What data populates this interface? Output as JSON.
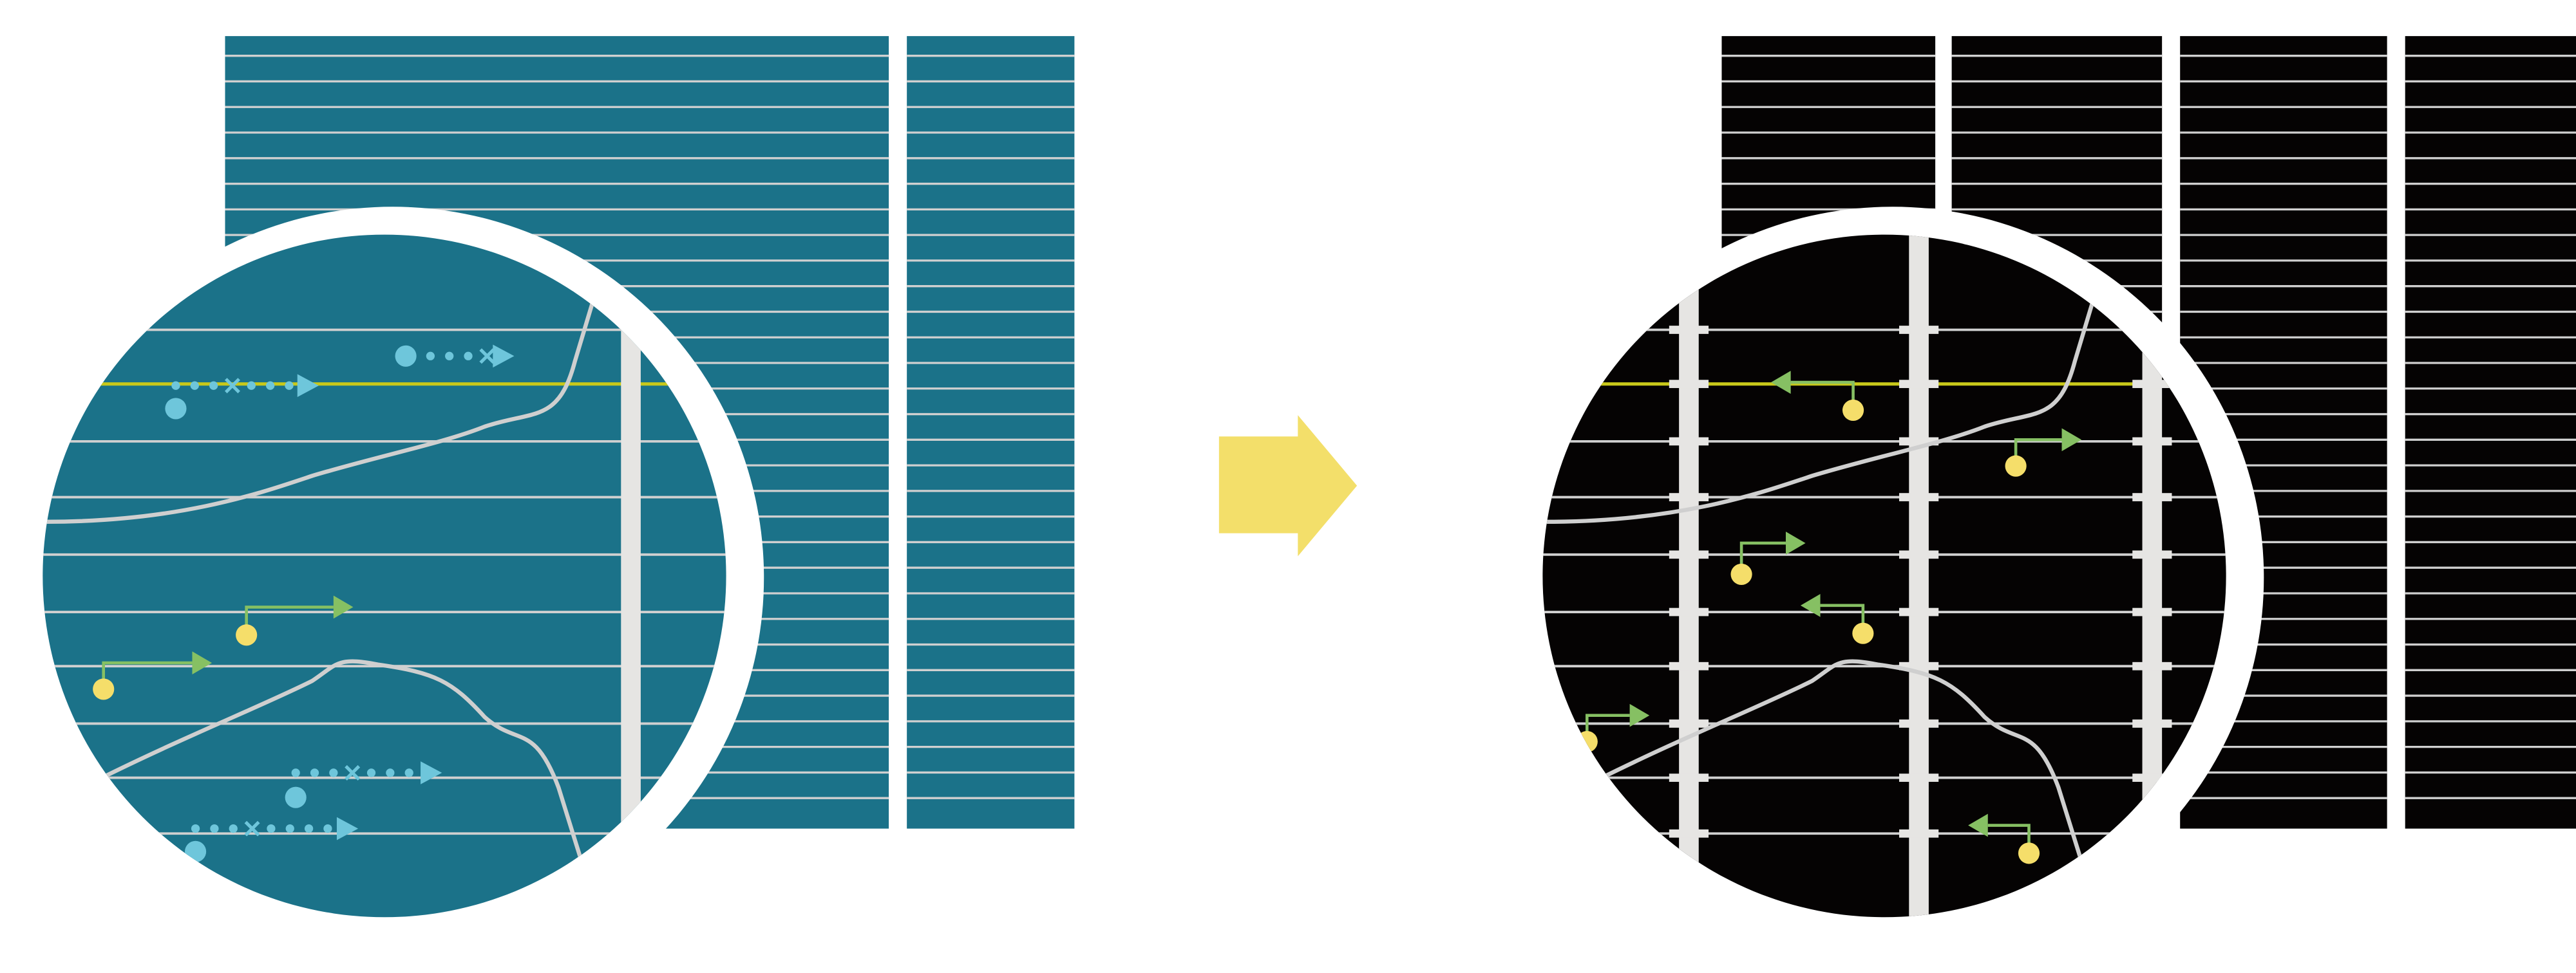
{
  "colors": {
    "background": "#ffffff",
    "before_panel": "#1b7289",
    "after_panel": "#050303",
    "grid_line": "#d0d0d0",
    "lens_ring": "#ffffff",
    "divider_bar": "#e6e5e3",
    "highlight_line": "#c8c81a",
    "curve": "#cfcfcf",
    "dotted_arrow": "#6ec6db",
    "green_arrow": "#86c063",
    "yellow_dot": "#f5de6a",
    "transition_arrow": "#f3df6a"
  },
  "icons": {
    "transition": "arrow-right-icon",
    "lens": "magnifier-lens-icon"
  },
  "before": {
    "panel_columns": 2,
    "lens_dividers": 1
  },
  "after": {
    "panel_columns": 4,
    "lens_dividers": 3
  }
}
